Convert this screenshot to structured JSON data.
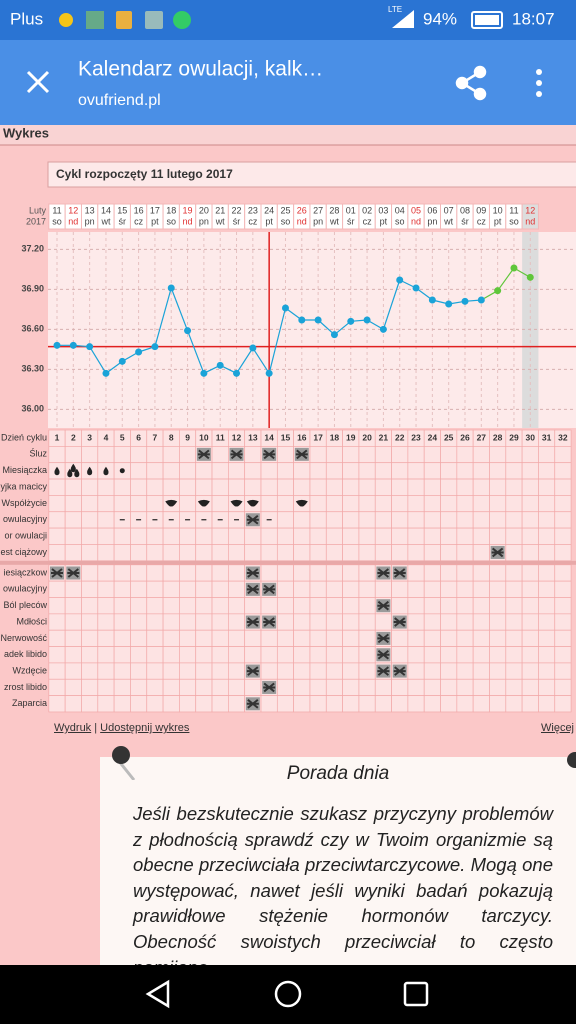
{
  "status": {
    "carrier": "Plus",
    "network": "LTE",
    "battery": "94%",
    "time": "18:07"
  },
  "app_bar": {
    "title": "Kalendarz owulacji, kalk…",
    "url": "ovufriend.pl"
  },
  "section_title": "Wykres",
  "chart_data": {
    "type": "line",
    "title": "Cykl rozpoczęty 11 lutego 2017",
    "month_label": "Luty",
    "year_label": "2017",
    "categories": [
      "11",
      "12",
      "13",
      "14",
      "15",
      "16",
      "17",
      "18",
      "19",
      "20",
      "21",
      "22",
      "23",
      "24",
      "25",
      "26",
      "27",
      "28",
      "01",
      "02",
      "03",
      "04",
      "05",
      "06",
      "07",
      "08",
      "09",
      "10",
      "11",
      "12"
    ],
    "weekdays": [
      "so",
      "nd",
      "pn",
      "wt",
      "śr",
      "cz",
      "pt",
      "so",
      "nd",
      "pn",
      "wt",
      "śr",
      "cz",
      "pt",
      "so",
      "nd",
      "pn",
      "wt",
      "śr",
      "cz",
      "pt",
      "so",
      "nd",
      "pn",
      "wt",
      "śr",
      "cz",
      "pt",
      "so",
      "nd"
    ],
    "values": [
      36.48,
      36.48,
      36.47,
      36.27,
      36.36,
      36.43,
      36.47,
      36.91,
      36.59,
      36.27,
      36.33,
      36.27,
      36.46,
      36.27,
      36.76,
      36.67,
      36.67,
      36.56,
      36.66,
      36.67,
      36.6,
      36.97,
      36.91,
      36.82,
      36.79,
      36.81,
      36.82,
      36.89,
      37.06,
      36.99
    ],
    "point_colors": [
      "#1aa3d8",
      "#1aa3d8",
      "#1aa3d8",
      "#1aa3d8",
      "#1aa3d8",
      "#1aa3d8",
      "#1aa3d8",
      "#1aa3d8",
      "#1aa3d8",
      "#1aa3d8",
      "#1aa3d8",
      "#1aa3d8",
      "#1aa3d8",
      "#1aa3d8",
      "#1aa3d8",
      "#1aa3d8",
      "#1aa3d8",
      "#1aa3d8",
      "#1aa3d8",
      "#1aa3d8",
      "#1aa3d8",
      "#1aa3d8",
      "#1aa3d8",
      "#1aa3d8",
      "#1aa3d8",
      "#1aa3d8",
      "#1aa3d8",
      "#5fc63a",
      "#5fc63a",
      "#5fc63a"
    ],
    "ylim": [
      35.86,
      37.33
    ],
    "yticks": [
      {
        "value": 36.0,
        "label": "36.00"
      },
      {
        "value": 36.3,
        "label": "36.30"
      },
      {
        "value": 36.6,
        "label": "36.60"
      },
      {
        "value": 36.9,
        "label": "36.90"
      },
      {
        "value": 37.2,
        "label": "37.20"
      }
    ],
    "grid": true,
    "coverline": 36.47,
    "ovulation_day": 14,
    "current_day": 30,
    "line_color": "#e02020"
  },
  "observations": {
    "cycle_label": "Dzień cyklu",
    "cycle_days": [
      1,
      2,
      3,
      4,
      5,
      6,
      7,
      8,
      9,
      10,
      11,
      12,
      13,
      14,
      15,
      16,
      17,
      18,
      19,
      20,
      21,
      22,
      23,
      24,
      25,
      26,
      27,
      28,
      29,
      30,
      31,
      32
    ],
    "rows": [
      {
        "label": "Śluz",
        "marker": "square",
        "days": [
          10,
          12,
          14,
          16
        ]
      },
      {
        "label": "Miesiączka",
        "marker": "drop",
        "days": [
          1,
          2,
          3,
          4,
          5
        ],
        "amount": [
          1,
          3,
          1,
          1,
          0
        ]
      },
      {
        "label": "yjka macicy",
        "marker": "square",
        "days": []
      },
      {
        "label": "Współżycie",
        "marker": "heart",
        "days": [
          8,
          10,
          12,
          13,
          16
        ]
      },
      {
        "label": "owulacyjny",
        "marker": "dash",
        "days": [
          5,
          6,
          7,
          8,
          9,
          10,
          11,
          12,
          14
        ],
        "positive_days": [
          13
        ]
      },
      {
        "label": "or owulacji",
        "marker": "square",
        "days": []
      },
      {
        "label": "est ciążowy",
        "marker": "square",
        "days": [
          28
        ]
      }
    ]
  },
  "symptoms": {
    "rows": [
      {
        "label": "iesiączkow",
        "days": [
          1,
          2,
          13,
          21,
          22
        ]
      },
      {
        "label": "owulacyjny",
        "days": [
          13,
          14
        ]
      },
      {
        "label": "Ból pleców",
        "days": [
          21
        ]
      },
      {
        "label": "Mdłości",
        "days": [
          13,
          14,
          22
        ]
      },
      {
        "label": "Nerwowość",
        "days": [
          21
        ]
      },
      {
        "label": "adek libido",
        "days": [
          21
        ]
      },
      {
        "label": "Wzdęcie",
        "days": [
          13,
          21,
          22
        ]
      },
      {
        "label": "zrost libido",
        "days": [
          14
        ]
      },
      {
        "label": "Zaparcia",
        "days": [
          13
        ]
      }
    ]
  },
  "links": {
    "print": "Wydruk",
    "separator": "|",
    "share": "Udostępnij wykres",
    "more": "Więcej"
  },
  "tip": {
    "title": "Porada dnia",
    "text": "Jeśli bezskutecznie szukasz przyczyny problemów z płodnością sprawdź czy w Twoim organizmie są obecne przeciwciała przeciwtarczycowe. Mogą one występować, nawet jeśli wyniki badań pokazują prawidłowe stężenie hormonów tarczycy. Obecność swoistych przeciwciał to często pomijane"
  }
}
